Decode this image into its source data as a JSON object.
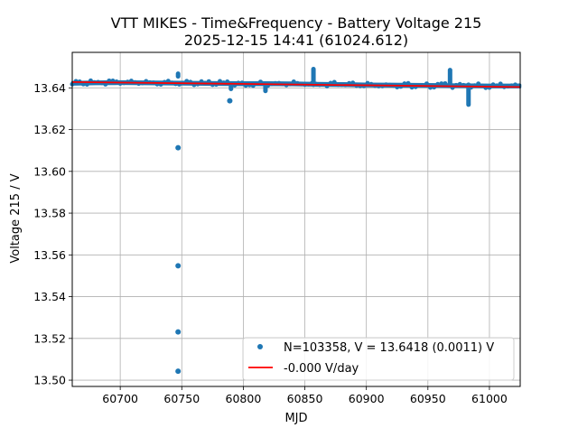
{
  "chart_data": {
    "type": "scatter",
    "title": "VTT MIKES - Time&Frequency - Battery Voltage 215",
    "subtitle": "2025-12-15 14:41 (61024.612)",
    "xlabel": "MJD",
    "ylabel": "Voltage 215 / V",
    "xlim": [
      60661,
      61025
    ],
    "ylim": [
      13.497,
      13.657
    ],
    "xticks": [
      60700,
      60750,
      60800,
      60850,
      60900,
      60950,
      61000
    ],
    "yticks": [
      13.5,
      13.52,
      13.54,
      13.56,
      13.58,
      13.6,
      13.62,
      13.64
    ],
    "grid": true,
    "legend_position": "lower-right",
    "colors": {
      "points": "#1f77b4",
      "fit": "#ff0000"
    },
    "series": [
      {
        "name": "N=103358, V = 13.6418 (0.0011) V",
        "kind": "points",
        "band": {
          "x": [
            60661,
            60680,
            60700,
            60720,
            60740,
            60760,
            60780,
            60800,
            60820,
            60840,
            60850,
            60860,
            60880,
            60900,
            60920,
            60940,
            60960,
            60980,
            61000,
            61025
          ],
          "center": [
            13.6422,
            13.6424,
            13.6425,
            13.6424,
            13.6423,
            13.6422,
            13.6421,
            13.642,
            13.642,
            13.6419,
            13.6418,
            13.6417,
            13.6416,
            13.6414,
            13.6413,
            13.6412,
            13.6411,
            13.641,
            13.6409,
            13.6409
          ],
          "spread": 0.0012
        },
        "spikes": [
          {
            "x": 60747,
            "y_min": 13.6455,
            "y_max": 13.6468
          },
          {
            "x": 60790,
            "y_min": 13.6395,
            "y_max": 13.642
          },
          {
            "x": 60818,
            "y_min": 13.6385,
            "y_max": 13.6415
          },
          {
            "x": 60857,
            "y_min": 13.6415,
            "y_max": 13.649
          },
          {
            "x": 60968,
            "y_min": 13.641,
            "y_max": 13.6485
          },
          {
            "x": 60983,
            "y_min": 13.632,
            "y_max": 13.6415
          }
        ],
        "outliers": [
          {
            "x": 60747,
            "y": 13.6113
          },
          {
            "x": 60747,
            "y": 13.5548
          },
          {
            "x": 60747,
            "y": 13.5231
          },
          {
            "x": 60747,
            "y": 13.5043
          },
          {
            "x": 60789,
            "y": 13.6338
          }
        ]
      },
      {
        "name": "-0.000 V/day",
        "kind": "line",
        "x": [
          60661,
          61025
        ],
        "y": [
          13.6428,
          13.6404
        ]
      }
    ]
  }
}
